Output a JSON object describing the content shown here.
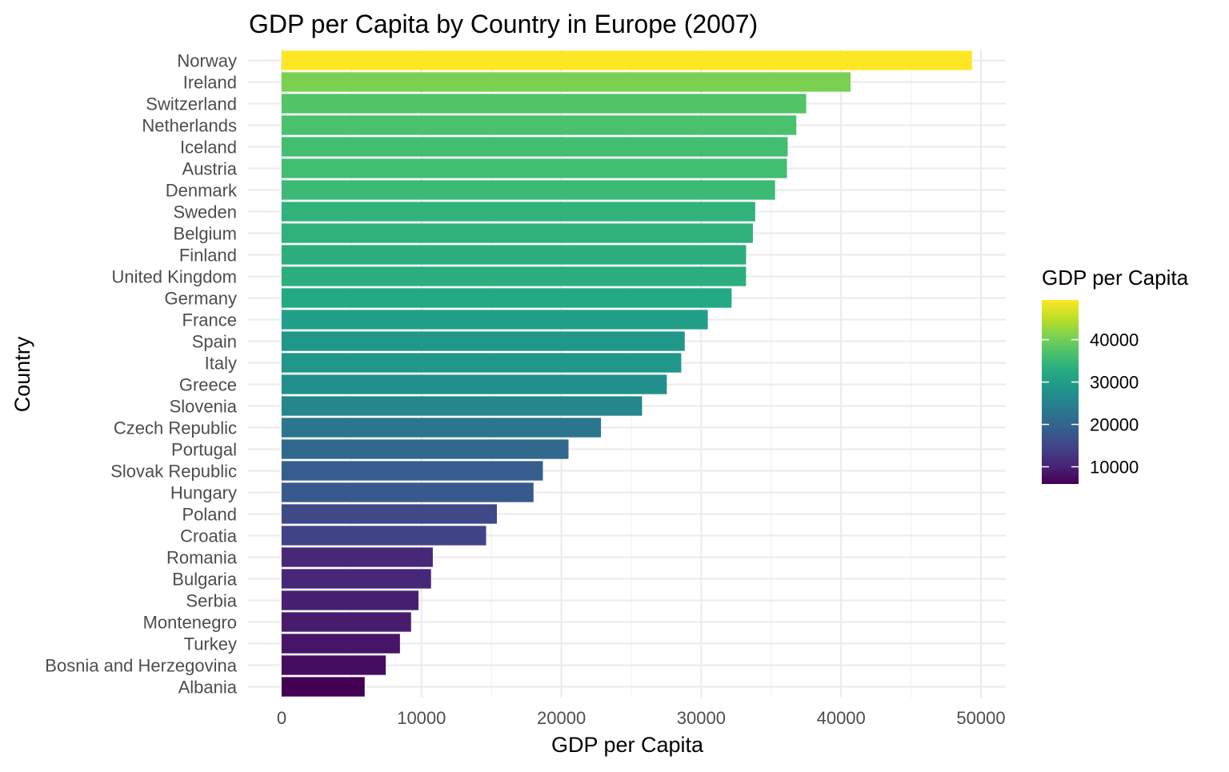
{
  "chart_data": {
    "type": "bar",
    "orientation": "horizontal",
    "title": "GDP per Capita by Country in Europe (2007)",
    "xlabel": "GDP per Capita",
    "ylabel": "Country",
    "xlim": [
      0,
      50000
    ],
    "x_ticks": [
      "0",
      "10000",
      "20000",
      "30000",
      "40000",
      "50000"
    ],
    "grid": true,
    "legend": {
      "title": "GDP per Capita",
      "placement": "right",
      "type": "continuous colorbar",
      "palette": "viridis",
      "range": [
        5937,
        49357
      ],
      "ticks": [
        "10000",
        "20000",
        "30000",
        "40000"
      ]
    },
    "categories": [
      "Norway",
      "Ireland",
      "Switzerland",
      "Netherlands",
      "Iceland",
      "Austria",
      "Denmark",
      "Sweden",
      "Belgium",
      "Finland",
      "United Kingdom",
      "Germany",
      "France",
      "Spain",
      "Italy",
      "Greece",
      "Slovenia",
      "Czech Republic",
      "Portugal",
      "Slovak Republic",
      "Hungary",
      "Poland",
      "Croatia",
      "Romania",
      "Bulgaria",
      "Serbia",
      "Montenegro",
      "Turkey",
      "Bosnia and Herzegovina",
      "Albania"
    ],
    "values": [
      49357,
      40676,
      37506,
      36798,
      36181,
      36126,
      35278,
      33860,
      33693,
      33207,
      33203,
      32170,
      30470,
      28821,
      28570,
      27538,
      25768,
      22833,
      20510,
      18678,
      18009,
      15390,
      14619,
      10808,
      10681,
      9787,
      9254,
      8458,
      7446,
      5937
    ]
  }
}
